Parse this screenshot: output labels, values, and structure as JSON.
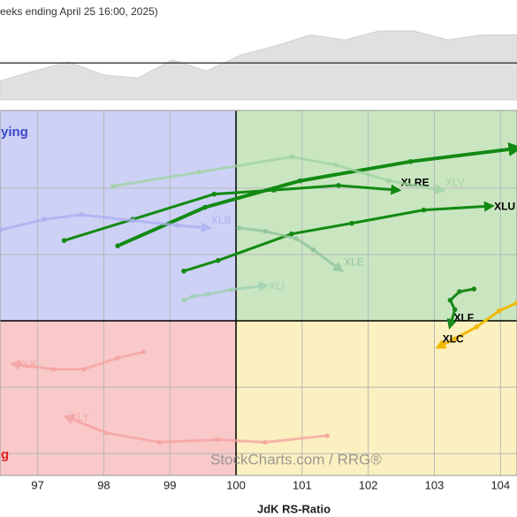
{
  "chart_data": [
    {
      "type": "rrg",
      "title": "eeks ending April 25 16:00, 2025)",
      "x_label": "JdK RS-Ratio",
      "watermark": "StockCharts.com / RRG®",
      "quadrant_labels": [
        {
          "text": "ying",
          "color": "#3848c8"
        },
        {
          "text": "g",
          "color": "#e02020"
        }
      ],
      "quadrant_colors": [
        "#cdd1f6",
        "#c9e6c1",
        "#fbf0bf",
        "#f9c9c9"
      ],
      "center": [
        100,
        100
      ],
      "xlim": [
        96.43,
        104.25
      ],
      "xticks": [
        97,
        98,
        99,
        100,
        101,
        102,
        103,
        104
      ],
      "ylim": [
        97.67,
        103.17
      ],
      "ygrid": [
        98,
        99,
        100,
        101,
        102
      ],
      "grid": true,
      "series": [
        {
          "name": "XLRE",
          "color": "#128a12",
          "faded": false,
          "x": [
            97.4,
            98.44,
            99.67,
            100.57,
            101.55,
            102.44
          ],
          "y": [
            101.21,
            101.53,
            101.91,
            101.97,
            102.04,
            101.97
          ]
        },
        {
          "name": "XLU",
          "color": "#128a12",
          "faded": false,
          "x": [
            99.21,
            99.73,
            100.84,
            101.75,
            102.84,
            103.85
          ],
          "y": [
            100.75,
            100.91,
            101.31,
            101.47,
            101.67,
            101.73
          ]
        },
        {
          "name": null,
          "color": "#128a12",
          "faded": false,
          "x": [
            98.21,
            99.53,
            100.97,
            102.64,
            104.25
          ],
          "y": [
            101.13,
            101.71,
            102.11,
            102.4,
            102.6
          ]
        },
        {
          "name": "XLV",
          "color": "#9fd3a0",
          "faded": true,
          "x": [
            98.14,
            99.44,
            100.84,
            101.51,
            102.31,
            103.11
          ],
          "y": [
            102.03,
            102.24,
            102.47,
            102.35,
            102.11,
            101.97
          ]
        },
        {
          "name": "XLB",
          "color": "#a9aef0",
          "faded": true,
          "x": [
            96.44,
            97.1,
            97.66,
            98.44,
            99.11,
            99.57
          ],
          "y": [
            101.37,
            101.53,
            101.6,
            101.51,
            101.44,
            101.4
          ]
        },
        {
          "name": "XLE",
          "color": "#8ec39a",
          "faded": true,
          "x": [
            100.04,
            100.44,
            100.91,
            101.17,
            101.58
          ],
          "y": [
            101.4,
            101.35,
            101.24,
            101.07,
            100.77
          ]
        },
        {
          "name": "XLI",
          "color": "#9ccfb0",
          "faded": true,
          "x": [
            99.21,
            99.35,
            99.57,
            99.93,
            100.44
          ],
          "y": [
            100.31,
            100.37,
            100.4,
            100.47,
            100.53
          ]
        },
        {
          "name": "XLF",
          "color": "#1a8a1a",
          "faded": false,
          "x": [
            103.6,
            103.38,
            103.24,
            103.31,
            103.24
          ],
          "y": [
            100.48,
            100.44,
            100.31,
            100.17,
            99.93
          ]
        },
        {
          "name": "XLC",
          "color": "#f0b800",
          "faded": false,
          "x": [
            104.25,
            103.98,
            103.64,
            103.31,
            103.07
          ],
          "y": [
            100.27,
            100.15,
            99.91,
            99.73,
            99.61
          ]
        },
        {
          "name": "XLK",
          "color": "#f4a0a0",
          "faded": true,
          "x": [
            98.6,
            98.21,
            97.7,
            97.24,
            96.64
          ],
          "y": [
            99.53,
            99.44,
            99.27,
            99.27,
            99.35
          ]
        },
        {
          "name": "XLY",
          "color": "#f4a0a0",
          "faded": true,
          "x": [
            101.38,
            100.44,
            99.71,
            98.84,
            98.04,
            97.44
          ],
          "y": [
            98.27,
            98.17,
            98.21,
            98.17,
            98.31,
            98.55
          ]
        }
      ]
    },
    {
      "type": "area",
      "color": "#e0e0e0",
      "ylim": [
        0,
        100
      ],
      "reference": 37,
      "values": [
        19,
        29,
        38,
        25,
        22,
        40,
        29,
        45,
        54,
        65,
        60,
        69,
        69,
        60,
        65,
        65
      ]
    }
  ]
}
